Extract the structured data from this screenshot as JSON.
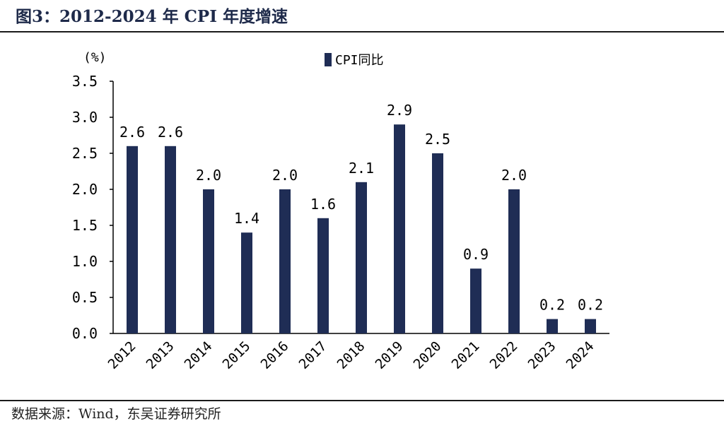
{
  "figure": {
    "title": "图3：2012-2024 年 CPI 年度增速",
    "source": "数据来源：Wind，东吴证券研究所"
  },
  "colors": {
    "bar": "#1f2d55",
    "axis": "#000000",
    "title": "#1e2a4a"
  },
  "chart_data": {
    "type": "bar",
    "unit_label": "(%)",
    "categories": [
      "2012",
      "2013",
      "2014",
      "2015",
      "2016",
      "2017",
      "2018",
      "2019",
      "2020",
      "2021",
      "2022",
      "2023",
      "2024"
    ],
    "series": [
      {
        "name": "CPI同比",
        "values": [
          2.6,
          2.6,
          2.0,
          1.4,
          2.0,
          1.6,
          2.1,
          2.9,
          2.5,
          0.9,
          2.0,
          0.2,
          0.2
        ]
      }
    ],
    "data_labels": [
      "2.6",
      "2.6",
      "2.0",
      "1.4",
      "2.0",
      "1.6",
      "2.1",
      "2.9",
      "2.5",
      "0.9",
      "2.0",
      "0.2",
      "0.2"
    ],
    "y_ticks": [
      "0.0",
      "0.5",
      "1.0",
      "1.5",
      "2.0",
      "2.5",
      "3.0",
      "3.5"
    ],
    "ylim": [
      0,
      3.5
    ],
    "grid": false,
    "legend_position": "top-center"
  }
}
